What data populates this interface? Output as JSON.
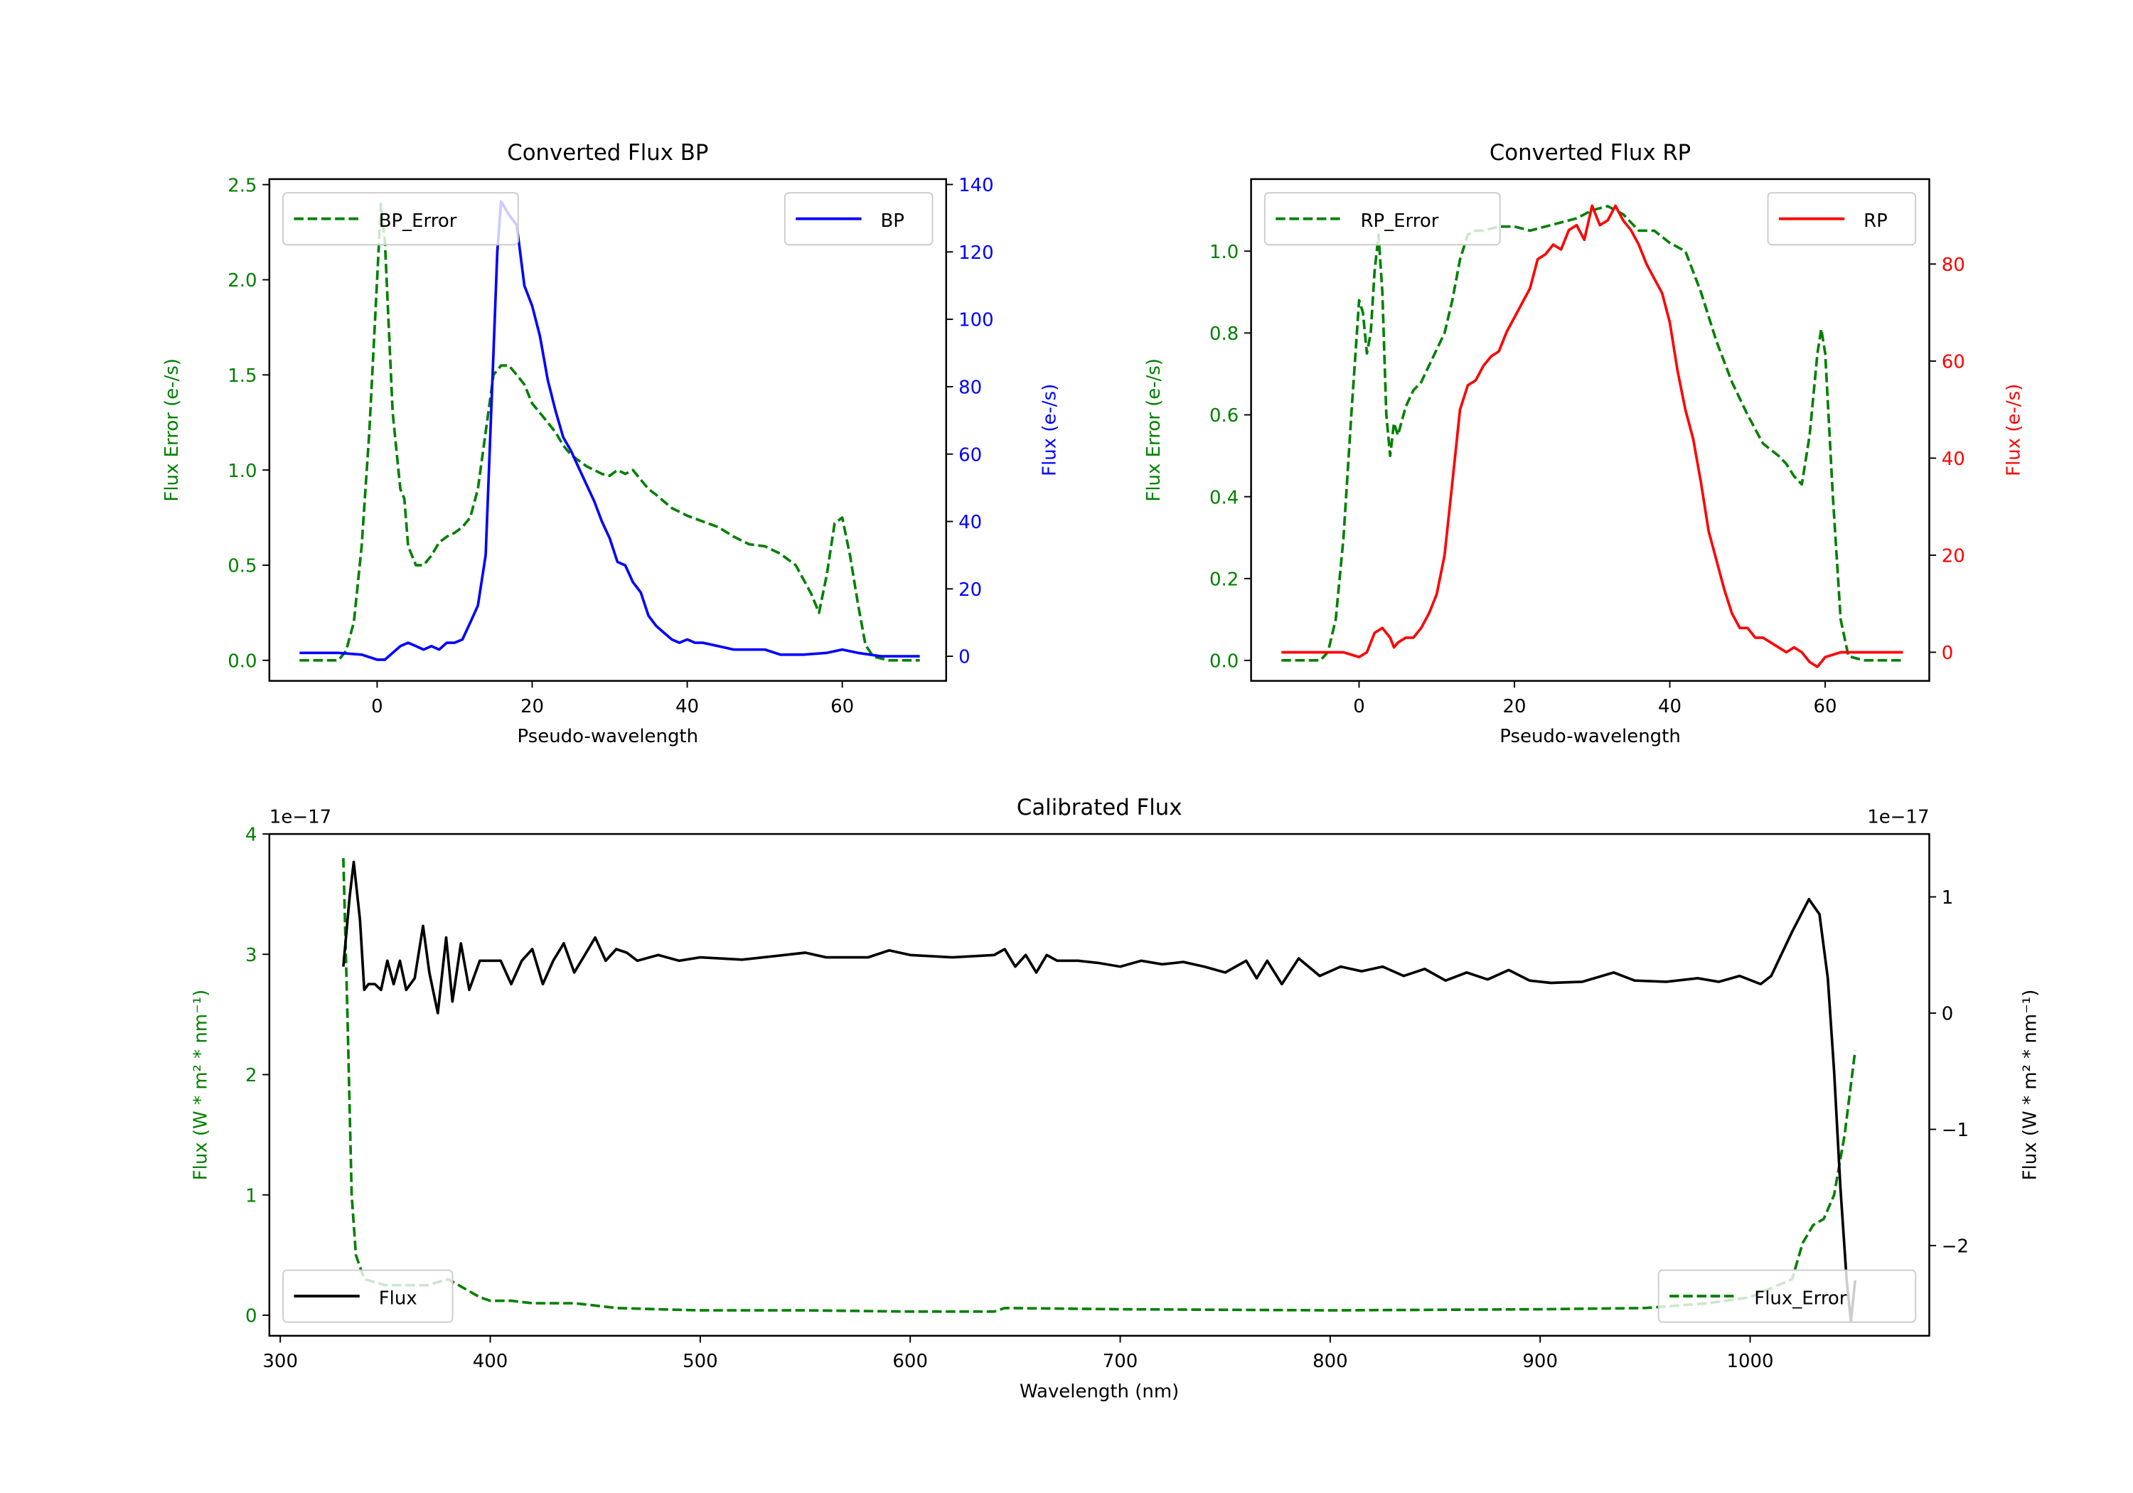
{
  "colors": {
    "error": "#008000",
    "bp": "#0000ff",
    "rp": "#ff0000",
    "flux": "#000000",
    "legend_border": "#cccccc"
  },
  "chart_data": [
    {
      "id": "bp",
      "type": "line",
      "title": "Converted Flux BP",
      "xlabel": "Pseudo-wavelength",
      "ylabel_left": "Flux Error (e-/s)",
      "ylabel_right": "Flux (e-/s)",
      "xlim": [
        -13.9,
        73.4
      ],
      "ylim_left": [
        -0.108,
        2.529
      ],
      "ylim_right": [
        -7.3,
        141.6
      ],
      "xticks": [
        0,
        20,
        40,
        60
      ],
      "yticks_left": [
        "0.0",
        "0.5",
        "1.0",
        "1.5",
        "2.0",
        "2.5"
      ],
      "yticks_right": [
        "0",
        "20",
        "40",
        "60",
        "80",
        "100",
        "120",
        "140"
      ],
      "legend_left": {
        "label": "BP_Error",
        "placement": "upper-left"
      },
      "legend_right": {
        "label": "BP",
        "placement": "upper-right"
      },
      "series": [
        {
          "name": "BP_Error",
          "axis": "left",
          "color": "#008000",
          "dashed": true,
          "x": [
            -10,
            -5,
            -4,
            -3,
            -2,
            -1,
            0,
            0.5,
            1,
            2,
            3,
            3.5,
            4,
            5,
            6,
            7,
            8,
            9,
            10,
            11,
            12,
            13,
            14,
            15,
            16,
            17,
            18,
            19,
            20,
            21,
            22,
            23,
            24,
            25,
            26,
            27,
            28,
            29,
            30,
            31,
            32,
            33,
            34,
            35,
            36,
            38,
            40,
            42,
            44,
            46,
            48,
            50,
            52,
            54,
            56,
            57,
            58,
            59,
            60,
            61,
            62,
            63,
            64,
            66,
            70
          ],
          "y": [
            0,
            0,
            0.05,
            0.2,
            0.6,
            1.2,
            2.0,
            2.4,
            2.2,
            1.3,
            0.9,
            0.85,
            0.6,
            0.5,
            0.5,
            0.55,
            0.62,
            0.65,
            0.67,
            0.7,
            0.75,
            0.9,
            1.2,
            1.5,
            1.55,
            1.55,
            1.5,
            1.45,
            1.35,
            1.3,
            1.25,
            1.2,
            1.13,
            1.08,
            1.05,
            1.02,
            1.0,
            0.98,
            0.97,
            1.0,
            0.98,
            1.0,
            0.95,
            0.9,
            0.87,
            0.8,
            0.76,
            0.73,
            0.7,
            0.65,
            0.61,
            0.6,
            0.56,
            0.5,
            0.35,
            0.25,
            0.45,
            0.72,
            0.75,
            0.55,
            0.3,
            0.08,
            0.02,
            0,
            0
          ]
        },
        {
          "name": "BP",
          "axis": "right",
          "color": "#0000ff",
          "dashed": false,
          "x": [
            -10,
            -5,
            -2,
            0,
            1,
            2,
            3,
            4,
            5,
            6,
            7,
            8,
            9,
            10,
            11,
            12,
            13,
            14,
            15,
            15.5,
            16,
            17,
            18,
            19,
            20,
            21,
            22,
            23,
            24,
            25,
            26,
            27,
            28,
            29,
            30,
            31,
            32,
            33,
            34,
            35,
            36,
            37,
            38,
            39,
            40,
            41,
            42,
            44,
            46,
            48,
            50,
            52,
            55,
            58,
            60,
            62,
            65,
            70
          ],
          "y": [
            1,
            1,
            0.5,
            -1,
            -1,
            1,
            3,
            4,
            3,
            2,
            3,
            2,
            4,
            4,
            5,
            10,
            15,
            30,
            90,
            120,
            135,
            131,
            128,
            110,
            104,
            95,
            82,
            73,
            65,
            61,
            56,
            51,
            46,
            40,
            35,
            28,
            27,
            22,
            19,
            12,
            9,
            7,
            5,
            4,
            5,
            4,
            4,
            3,
            2,
            2,
            2,
            0.5,
            0.5,
            1,
            2,
            1,
            0,
            0
          ]
        }
      ]
    },
    {
      "id": "rp",
      "type": "line",
      "title": "Converted Flux RP",
      "xlabel": "Pseudo-wavelength",
      "ylabel_left": "Flux Error (e-/s)",
      "ylabel_right": "Flux (e-/s)",
      "xlim": [
        -13.9,
        73.4
      ],
      "ylim_left": [
        -0.05,
        1.176
      ],
      "ylim_right": [
        -5.9,
        97.5
      ],
      "xticks": [
        0,
        20,
        40,
        60
      ],
      "yticks_left": [
        "0.0",
        "0.2",
        "0.4",
        "0.6",
        "0.8",
        "1.0"
      ],
      "yticks_right": [
        "0",
        "20",
        "40",
        "60",
        "80"
      ],
      "legend_left": {
        "label": "RP_Error",
        "placement": "upper-left"
      },
      "legend_right": {
        "label": "RP",
        "placement": "upper-right"
      },
      "series": [
        {
          "name": "RP_Error",
          "axis": "left",
          "color": "#008000",
          "dashed": true,
          "x": [
            -10,
            -5,
            -4,
            -3,
            -2,
            -1,
            0,
            0.5,
            1,
            1.5,
            2,
            2.5,
            3,
            3.5,
            4,
            4.5,
            5,
            6,
            7,
            8,
            9,
            10,
            11,
            12,
            13,
            14,
            15,
            16,
            18,
            20,
            22,
            24,
            26,
            28,
            30,
            32,
            34,
            36,
            38,
            40,
            42,
            44,
            46,
            48,
            50,
            52,
            54,
            55,
            56,
            57,
            58,
            59,
            59.5,
            60,
            61,
            62,
            63,
            65,
            70
          ],
          "y": [
            0,
            0,
            0.02,
            0.1,
            0.3,
            0.6,
            0.88,
            0.85,
            0.75,
            0.8,
            0.95,
            1.04,
            0.9,
            0.6,
            0.5,
            0.58,
            0.55,
            0.62,
            0.66,
            0.68,
            0.72,
            0.76,
            0.8,
            0.88,
            0.98,
            1.04,
            1.05,
            1.05,
            1.06,
            1.06,
            1.05,
            1.06,
            1.07,
            1.08,
            1.1,
            1.11,
            1.09,
            1.05,
            1.05,
            1.02,
            1.0,
            0.9,
            0.78,
            0.68,
            0.6,
            0.53,
            0.5,
            0.48,
            0.45,
            0.43,
            0.55,
            0.75,
            0.81,
            0.75,
            0.4,
            0.1,
            0.01,
            0,
            0
          ]
        },
        {
          "name": "RP",
          "axis": "right",
          "color": "#ff0000",
          "dashed": false,
          "x": [
            -10,
            -5,
            -2,
            0,
            1,
            2,
            3,
            4,
            4.5,
            5,
            6,
            7,
            8,
            9,
            10,
            11,
            12,
            13,
            14,
            15,
            16,
            17,
            18,
            19,
            20,
            21,
            22,
            23,
            24,
            25,
            26,
            27,
            28,
            29,
            30,
            31,
            32,
            33,
            34,
            35,
            36,
            37,
            38,
            39,
            40,
            41,
            42,
            43,
            44,
            45,
            46,
            47,
            48,
            49,
            50,
            51,
            52,
            53,
            54,
            55,
            56,
            57,
            58,
            59,
            60,
            62,
            70
          ],
          "y": [
            0,
            0,
            0,
            -1,
            0,
            4,
            5,
            3,
            1,
            2,
            3,
            3,
            5,
            8,
            12,
            20,
            35,
            50,
            55,
            56,
            59,
            61,
            62,
            66,
            69,
            72,
            75,
            81,
            82,
            84,
            83,
            87,
            88,
            85,
            92,
            88,
            89,
            92,
            89,
            87,
            84,
            80,
            77,
            74,
            68,
            58,
            50,
            44,
            35,
            25,
            19,
            13,
            8,
            5,
            5,
            3,
            3,
            2,
            1,
            0,
            1,
            0,
            -2,
            -3,
            -1,
            0,
            0
          ]
        }
      ]
    },
    {
      "id": "cal",
      "type": "line",
      "title": "Calibrated Flux",
      "xlabel": "Wavelength (nm)",
      "ylabel_left": "Flux (W * m² * nm⁻¹)",
      "ylabel_right": "Flux (W * m² * nm⁻¹)",
      "offset_left": "1e−17",
      "offset_right": "1e−17",
      "xlim": [
        294.8,
        1085.3
      ],
      "ylim_left": [
        -0.171,
        4.0
      ],
      "ylim_right": [
        -2.776,
        1.541
      ],
      "xticks": [
        300,
        400,
        500,
        600,
        700,
        800,
        900,
        1000
      ],
      "yticks_left": [
        "0",
        "1",
        "2",
        "3",
        "4"
      ],
      "yticks_right": [
        "−2",
        "−1",
        "0",
        "1"
      ],
      "yticks_right_values": [
        -2,
        -1,
        0,
        1
      ],
      "legend_left": {
        "label": "Flux",
        "placement": "lower-left"
      },
      "legend_right": {
        "label": "Flux_Error",
        "placement": "lower-right"
      },
      "series": [
        {
          "name": "Flux_Error",
          "axis": "left",
          "color": "#008000",
          "dashed": true,
          "x": [
            330,
            332,
            334,
            336,
            340,
            350,
            360,
            370,
            380,
            385,
            390,
            395,
            400,
            410,
            420,
            430,
            440,
            450,
            460,
            480,
            500,
            550,
            600,
            640,
            645,
            700,
            800,
            900,
            950,
            980,
            1000,
            1020,
            1025,
            1030,
            1035,
            1040,
            1045,
            1050
          ],
          "y": [
            3.8,
            2.5,
            1.0,
            0.5,
            0.3,
            0.25,
            0.25,
            0.25,
            0.3,
            0.25,
            0.2,
            0.15,
            0.12,
            0.12,
            0.1,
            0.1,
            0.1,
            0.08,
            0.06,
            0.05,
            0.04,
            0.04,
            0.03,
            0.03,
            0.06,
            0.05,
            0.04,
            0.05,
            0.06,
            0.1,
            0.15,
            0.3,
            0.6,
            0.75,
            0.8,
            1.0,
            1.5,
            2.2
          ]
        },
        {
          "name": "Flux",
          "axis": "right",
          "color": "#000000",
          "dashed": false,
          "x": [
            330,
            333,
            335,
            338,
            340,
            342,
            345,
            348,
            351,
            354,
            357,
            360,
            364,
            368,
            371,
            375,
            379,
            382,
            386,
            390,
            395,
            400,
            405,
            410,
            415,
            420,
            425,
            430,
            435,
            440,
            445,
            450,
            455,
            460,
            465,
            470,
            480,
            490,
            500,
            520,
            540,
            550,
            560,
            580,
            590,
            600,
            620,
            640,
            645,
            650,
            655,
            660,
            665,
            670,
            680,
            690,
            700,
            710,
            720,
            730,
            740,
            750,
            760,
            765,
            770,
            777,
            785,
            795,
            805,
            815,
            825,
            835,
            845,
            855,
            865,
            875,
            885,
            895,
            905,
            920,
            935,
            945,
            960,
            975,
            985,
            995,
            1005,
            1010,
            1020,
            1028,
            1033,
            1037,
            1040,
            1043,
            1046,
            1048,
            1050
          ],
          "y": [
            0.4,
            1.0,
            1.3,
            0.8,
            0.2,
            0.25,
            0.25,
            0.2,
            0.45,
            0.25,
            0.45,
            0.2,
            0.3,
            0.75,
            0.35,
            0.0,
            0.65,
            0.1,
            0.6,
            0.2,
            0.45,
            0.45,
            0.45,
            0.25,
            0.45,
            0.55,
            0.25,
            0.45,
            0.6,
            0.35,
            0.5,
            0.65,
            0.45,
            0.55,
            0.52,
            0.45,
            0.5,
            0.45,
            0.48,
            0.46,
            0.5,
            0.52,
            0.48,
            0.48,
            0.54,
            0.5,
            0.48,
            0.5,
            0.55,
            0.4,
            0.5,
            0.35,
            0.5,
            0.45,
            0.45,
            0.43,
            0.4,
            0.45,
            0.42,
            0.44,
            0.4,
            0.35,
            0.45,
            0.3,
            0.45,
            0.25,
            0.47,
            0.32,
            0.4,
            0.36,
            0.4,
            0.32,
            0.38,
            0.28,
            0.35,
            0.29,
            0.37,
            0.28,
            0.26,
            0.27,
            0.35,
            0.28,
            0.27,
            0.3,
            0.27,
            0.32,
            0.25,
            0.32,
            0.7,
            0.98,
            0.85,
            0.3,
            -0.5,
            -1.5,
            -2.3,
            -2.65,
            -2.3
          ]
        }
      ]
    }
  ]
}
